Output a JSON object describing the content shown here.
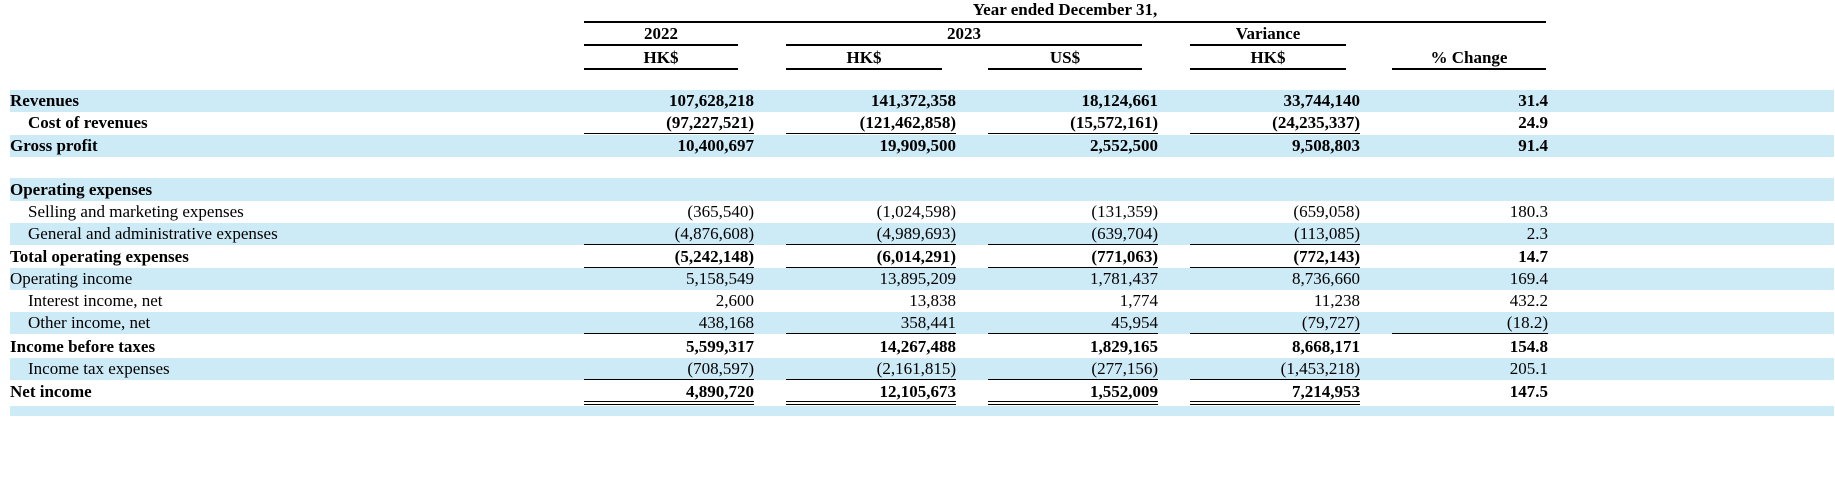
{
  "header": {
    "year_ended": "Year ended December 31,",
    "col_2022": "2022",
    "col_2023": "2023",
    "col_variance": "Variance",
    "cur_2022": "HK$",
    "cur_2023_hk": "HK$",
    "cur_2023_us": "US$",
    "cur_variance": "HK$",
    "pct_change": "% Change"
  },
  "rows": [
    {
      "label": "Revenues",
      "v": [
        "107,628,218",
        "141,372,358",
        "18,124,661",
        "33,744,140",
        "31.4"
      ]
    },
    {
      "label": "Cost of revenues",
      "v": [
        "(97,227,521)",
        "(121,462,858)",
        "(15,572,161)",
        "(24,235,337)",
        "24.9"
      ]
    },
    {
      "label": "Gross profit",
      "v": [
        "10,400,697",
        "19,909,500",
        "2,552,500",
        "9,508,803",
        "91.4"
      ]
    },
    {
      "label": "Operating expenses"
    },
    {
      "label": "Selling and marketing expenses",
      "v": [
        "(365,540)",
        "(1,024,598)",
        "(131,359)",
        "(659,058)",
        "180.3"
      ]
    },
    {
      "label": "General and administrative expenses",
      "v": [
        "(4,876,608)",
        "(4,989,693)",
        "(639,704)",
        "(113,085)",
        "2.3"
      ]
    },
    {
      "label": "Total operating expenses",
      "v": [
        "(5,242,148)",
        "(6,014,291)",
        "(771,063)",
        "(772,143)",
        "14.7"
      ]
    },
    {
      "label": "Operating income",
      "v": [
        "5,158,549",
        "13,895,209",
        "1,781,437",
        "8,736,660",
        "169.4"
      ]
    },
    {
      "label": "Interest income, net",
      "v": [
        "2,600",
        "13,838",
        "1,774",
        "11,238",
        "432.2"
      ]
    },
    {
      "label": "Other income, net",
      "v": [
        "438,168",
        "358,441",
        "45,954",
        "(79,727)",
        "(18.2)"
      ]
    },
    {
      "label": "Income before taxes",
      "v": [
        "5,599,317",
        "14,267,488",
        "1,829,165",
        "8,668,171",
        "154.8"
      ]
    },
    {
      "label": "Income tax expenses",
      "v": [
        "(708,597)",
        "(2,161,815)",
        "(277,156)",
        "(1,453,218)",
        "205.1"
      ]
    },
    {
      "label": "Net income",
      "v": [
        "4,890,720",
        "12,105,673",
        "1,552,009",
        "7,214,953",
        "147.5"
      ]
    }
  ]
}
